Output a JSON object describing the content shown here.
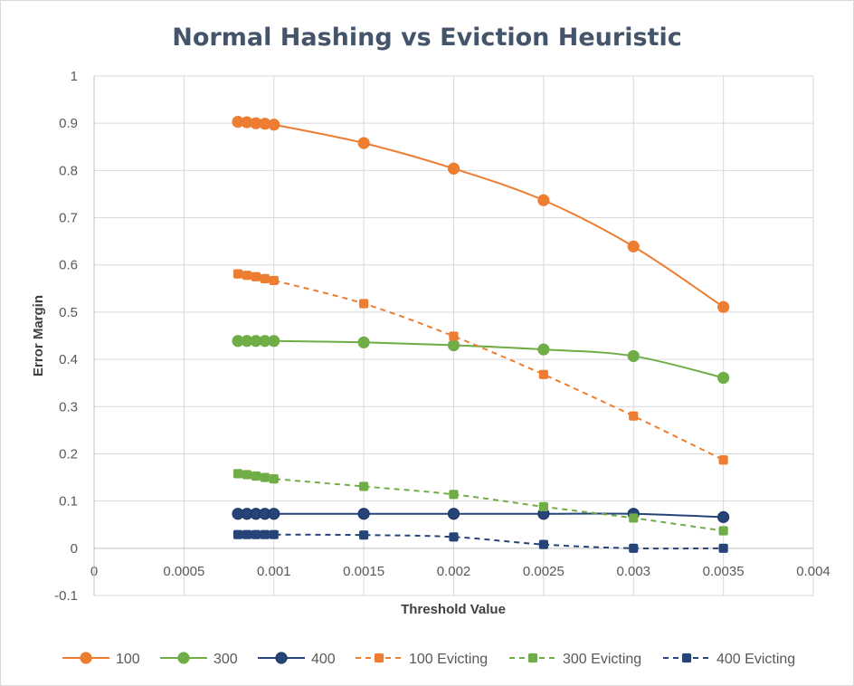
{
  "chart_data": {
    "type": "scatter",
    "title": "Normal Hashing vs Eviction Heuristic",
    "xlabel": "Threshold Value",
    "ylabel": "Error Margin",
    "xlim": [
      0,
      0.004
    ],
    "ylim": [
      -0.1,
      1
    ],
    "x_ticks": [
      "0",
      "0.0005",
      "0.001",
      "0.0015",
      "0.002",
      "0.0025",
      "0.003",
      "0.0035",
      "0.004"
    ],
    "y_ticks": [
      "-0.1",
      "0",
      "0.1",
      "0.2",
      "0.3",
      "0.4",
      "0.5",
      "0.6",
      "0.7",
      "0.8",
      "0.9",
      "1"
    ],
    "grid": true,
    "legend_position": "bottom",
    "x": [
      0.0008,
      0.00085,
      0.0009,
      0.00095,
      0.001,
      0.0015,
      0.002,
      0.0025,
      0.003,
      0.0035
    ],
    "series": [
      {
        "name": "100",
        "color": "#ed7d31",
        "line": "solid",
        "marker": "circle",
        "values": [
          0.903,
          0.902,
          0.9,
          0.899,
          0.897,
          0.858,
          0.804,
          0.737,
          0.639,
          0.511
        ]
      },
      {
        "name": "300",
        "color": "#70ad47",
        "line": "solid",
        "marker": "circle",
        "values": [
          0.439,
          0.439,
          0.439,
          0.439,
          0.439,
          0.436,
          0.43,
          0.421,
          0.407,
          0.361
        ]
      },
      {
        "name": "400",
        "color": "#264478",
        "line": "solid",
        "marker": "circle",
        "values": [
          0.073,
          0.073,
          0.073,
          0.073,
          0.073,
          0.073,
          0.073,
          0.073,
          0.073,
          0.066
        ]
      },
      {
        "name": "100 Evicting",
        "color": "#ed7d31",
        "line": "dashed",
        "marker": "square",
        "values": [
          0.581,
          0.578,
          0.575,
          0.571,
          0.567,
          0.518,
          0.449,
          0.368,
          0.28,
          0.187
        ]
      },
      {
        "name": "300 Evicting",
        "color": "#70ad47",
        "line": "dashed",
        "marker": "square",
        "values": [
          0.158,
          0.156,
          0.153,
          0.15,
          0.147,
          0.131,
          0.114,
          0.088,
          0.064,
          0.037
        ]
      },
      {
        "name": "400 Evicting",
        "color": "#264478",
        "line": "dashed",
        "marker": "square",
        "values": [
          0.029,
          0.029,
          0.029,
          0.029,
          0.029,
          0.028,
          0.024,
          0.008,
          0.0,
          0.0
        ]
      }
    ]
  }
}
